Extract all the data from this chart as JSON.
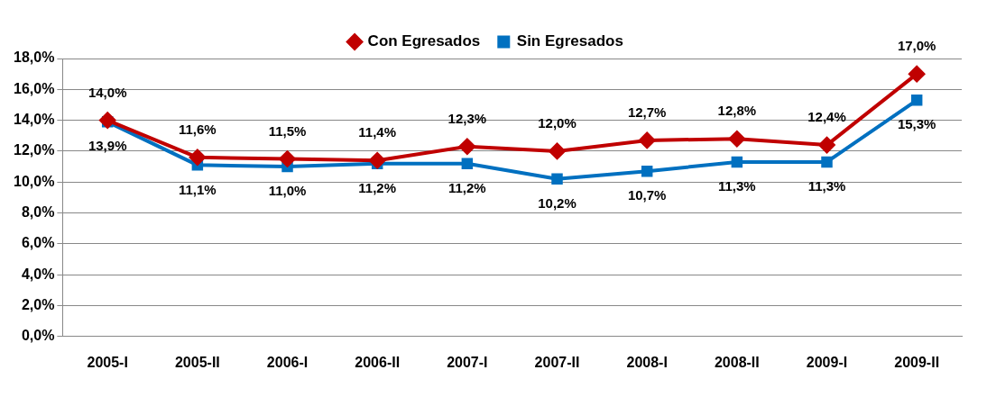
{
  "chart_data": {
    "type": "line",
    "categories": [
      "2005-I",
      "2005-II",
      "2006-I",
      "2006-II",
      "2007-I",
      "2007-II",
      "2008-I",
      "2008-II",
      "2009-I",
      "2009-II"
    ],
    "series": [
      {
        "name": "Con Egresados",
        "color": "#c00000",
        "marker": "diamond",
        "values": [
          14.0,
          11.6,
          11.5,
          11.4,
          12.3,
          12.0,
          12.7,
          12.8,
          12.4,
          17.0
        ],
        "value_labels": [
          "14,0%",
          "11,6%",
          "11,5%",
          "11,4%",
          "12,3%",
          "12,0%",
          "12,7%",
          "12,8%",
          "12,4%",
          "17,0%"
        ]
      },
      {
        "name": "Sin Egresados",
        "color": "#0070c0",
        "marker": "square",
        "values": [
          13.9,
          11.1,
          11.0,
          11.2,
          11.2,
          10.2,
          10.7,
          11.3,
          11.3,
          15.3
        ],
        "value_labels": [
          "13,9%",
          "11,1%",
          "11,0%",
          "11,2%",
          "11,2%",
          "10,2%",
          "10,7%",
          "11,3%",
          "11,3%",
          "15,3%"
        ]
      }
    ],
    "ylim": [
      0,
      18
    ],
    "yticks": [
      {
        "value": 0,
        "label": "0,0%"
      },
      {
        "value": 2,
        "label": "2,0%"
      },
      {
        "value": 4,
        "label": "4,0%"
      },
      {
        "value": 6,
        "label": "6,0%"
      },
      {
        "value": 8,
        "label": "8,0%"
      },
      {
        "value": 10,
        "label": "10,0%"
      },
      {
        "value": 12,
        "label": "12,0%"
      },
      {
        "value": 14,
        "label": "14,0%"
      },
      {
        "value": 16,
        "label": "16,0%"
      },
      {
        "value": 18,
        "label": "18,0%"
      }
    ],
    "grid": "y",
    "legend": "top",
    "line_style": "solid"
  }
}
